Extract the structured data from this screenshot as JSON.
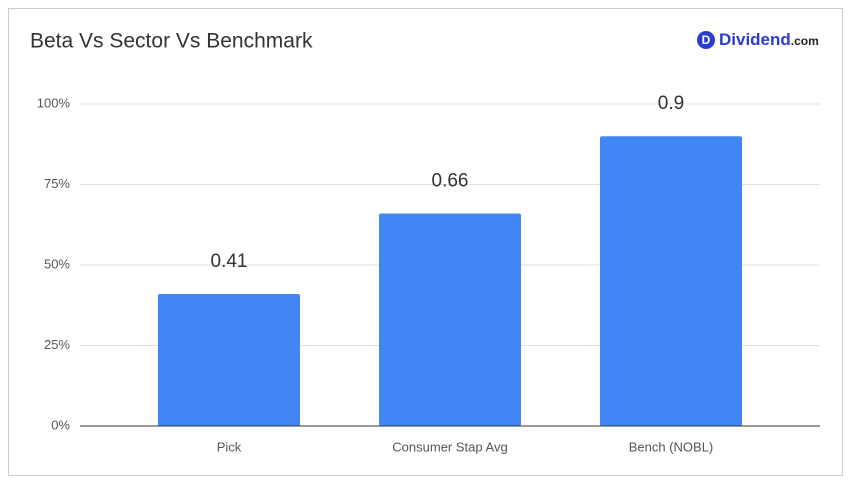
{
  "chart_data": {
    "type": "bar",
    "title": "Beta Vs Sector Vs Benchmark",
    "logo": {
      "mark": "D",
      "name": "Dividend",
      "suffix": ".com"
    },
    "categories": [
      "Pick",
      "Consumer Stap Avg",
      "Bench (NOBL)"
    ],
    "values": [
      0.41,
      0.66,
      0.9
    ],
    "color": "#4285f4",
    "ylim": [
      0,
      1
    ],
    "yticks": [
      {
        "value": 0,
        "label": "0%"
      },
      {
        "value": 0.25,
        "label": "25%"
      },
      {
        "value": 0.5,
        "label": "50%"
      },
      {
        "value": 0.75,
        "label": "75%"
      },
      {
        "value": 1,
        "label": "100%"
      }
    ],
    "grid": true
  }
}
